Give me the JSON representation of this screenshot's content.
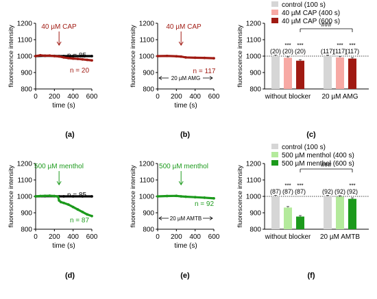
{
  "colors": {
    "cap_dark": "#a01a12",
    "cap_light": "#f7a9a4",
    "menthol_dark": "#1c9a1c",
    "menthol_light": "#b4ea9c",
    "control": "#d6d6d6",
    "black": "#000000"
  },
  "chart_data": [
    {
      "type": "line",
      "panel_label": "(a)",
      "xlabel": "time (s)",
      "ylabel": "fluorescence intensity",
      "xlim": [
        0,
        600
      ],
      "ylim": [
        800,
        1200
      ],
      "xticks": [
        0,
        200,
        400,
        600
      ],
      "yticks": [
        800,
        900,
        1000,
        1100,
        1200
      ],
      "annotation": "40 µM CAP",
      "arrow_x": 250,
      "series": [
        {
          "name": "n = 85",
          "color": "#000000",
          "x": [
            0,
            100,
            200,
            250,
            300,
            400,
            500,
            600
          ],
          "y": [
            1000,
            1002,
            1001,
            1000,
            1000,
            1000,
            1000,
            1000
          ]
        },
        {
          "name": "n = 20",
          "color": "#a01a12",
          "x": [
            0,
            50,
            100,
            150,
            200,
            250,
            300,
            350,
            400,
            450,
            500,
            550,
            600
          ],
          "y": [
            1000,
            1005,
            1002,
            1003,
            1000,
            998,
            992,
            988,
            985,
            983,
            980,
            977,
            974
          ]
        }
      ]
    },
    {
      "type": "line",
      "panel_label": "(b)",
      "xlabel": "time (s)",
      "ylabel": "fluorescence intensity",
      "xlim": [
        0,
        600
      ],
      "ylim": [
        800,
        1200
      ],
      "xticks": [
        0,
        200,
        400,
        600
      ],
      "yticks": [
        800,
        900,
        1000,
        1100,
        1200
      ],
      "annotation": "40 µM CAP",
      "arrow_x": 250,
      "blocker_label": "20 µM AMG",
      "series": [
        {
          "name": "n = 117",
          "color": "#a01a12",
          "x": [
            0,
            100,
            200,
            250,
            300,
            400,
            500,
            600
          ],
          "y": [
            1000,
            1001,
            999,
            997,
            992,
            990,
            989,
            987
          ]
        }
      ]
    },
    {
      "type": "bar",
      "panel_label": "(c)",
      "ylabel": "fluorescence intensity",
      "ylim": [
        800,
        1200
      ],
      "yticks": [
        800,
        900,
        1000,
        1100,
        1200
      ],
      "groups": [
        "without blocker",
        "20 µM AMG"
      ],
      "legend": [
        "control (100 s)",
        "40 µM CAP (400 s)",
        "40 µM CAP (600 s)"
      ],
      "series_colors": [
        "#d6d6d6",
        "#f7a9a4",
        "#a01a12"
      ],
      "values": [
        [
          1000,
          990,
          972
        ],
        [
          1000,
          992,
          985
        ]
      ],
      "n_labels": [
        [
          "(20)",
          "(20)",
          "(20)"
        ],
        [
          "(117)",
          "(117)",
          "(117)"
        ]
      ],
      "stars": [
        [
          "",
          "***",
          "***"
        ],
        [
          "",
          "***",
          "***"
        ]
      ],
      "comparison": "###"
    },
    {
      "type": "line",
      "panel_label": "(d)",
      "xlabel": "time (s)",
      "ylabel": "fluorescence intensity",
      "xlim": [
        0,
        600
      ],
      "ylim": [
        800,
        1200
      ],
      "xticks": [
        0,
        200,
        400,
        600
      ],
      "yticks": [
        800,
        900,
        1000,
        1100,
        1200
      ],
      "annotation": "500 µM menthol",
      "arrow_x": 250,
      "series": [
        {
          "name": "n = 85",
          "color": "#000000",
          "x": [
            0,
            100,
            200,
            250,
            300,
            400,
            500,
            600
          ],
          "y": [
            1000,
            1001,
            1001,
            1000,
            1000,
            1000,
            1000,
            1000
          ]
        },
        {
          "name": "n = 87",
          "color": "#1c9a1c",
          "x": [
            0,
            50,
            100,
            150,
            200,
            240,
            250,
            270,
            300,
            350,
            400,
            450,
            500,
            550,
            600
          ],
          "y": [
            1000,
            1002,
            1003,
            1004,
            1002,
            998,
            975,
            965,
            960,
            950,
            935,
            920,
            905,
            890,
            880
          ]
        }
      ]
    },
    {
      "type": "line",
      "panel_label": "(e)",
      "xlabel": "time (s)",
      "ylabel": "fluorescence intensity",
      "xlim": [
        0,
        600
      ],
      "ylim": [
        800,
        1200
      ],
      "xticks": [
        0,
        200,
        400,
        600
      ],
      "yticks": [
        800,
        900,
        1000,
        1100,
        1200
      ],
      "annotation": "500 µM menthol",
      "arrow_x": 250,
      "blocker_label": "20 µM AMTB",
      "series": [
        {
          "name": "n = 92",
          "color": "#1c9a1c",
          "x": [
            0,
            100,
            200,
            250,
            300,
            400,
            500,
            600
          ],
          "y": [
            1000,
            1002,
            1003,
            1000,
            998,
            995,
            992,
            988
          ]
        }
      ]
    },
    {
      "type": "bar",
      "panel_label": "(f)",
      "ylabel": "fluorescence intensity",
      "ylim": [
        800,
        1200
      ],
      "yticks": [
        800,
        900,
        1000,
        1100,
        1200
      ],
      "groups": [
        "without blocker",
        "20 µM AMTB"
      ],
      "legend": [
        "control (100 s)",
        "500 µM menthol (400 s)",
        "500 µM menthol (600 s)"
      ],
      "series_colors": [
        "#d6d6d6",
        "#b4ea9c",
        "#1c9a1c"
      ],
      "values": [
        [
          1000,
          932,
          877
        ],
        [
          1000,
          998,
          985
        ]
      ],
      "n_labels": [
        [
          "(87)",
          "(87)",
          "(87)"
        ],
        [
          "(92)",
          "(92)",
          "(92)"
        ]
      ],
      "stars": [
        [
          "",
          "***",
          "***"
        ],
        [
          "",
          "",
          "***"
        ]
      ],
      "comparison": "###"
    }
  ]
}
